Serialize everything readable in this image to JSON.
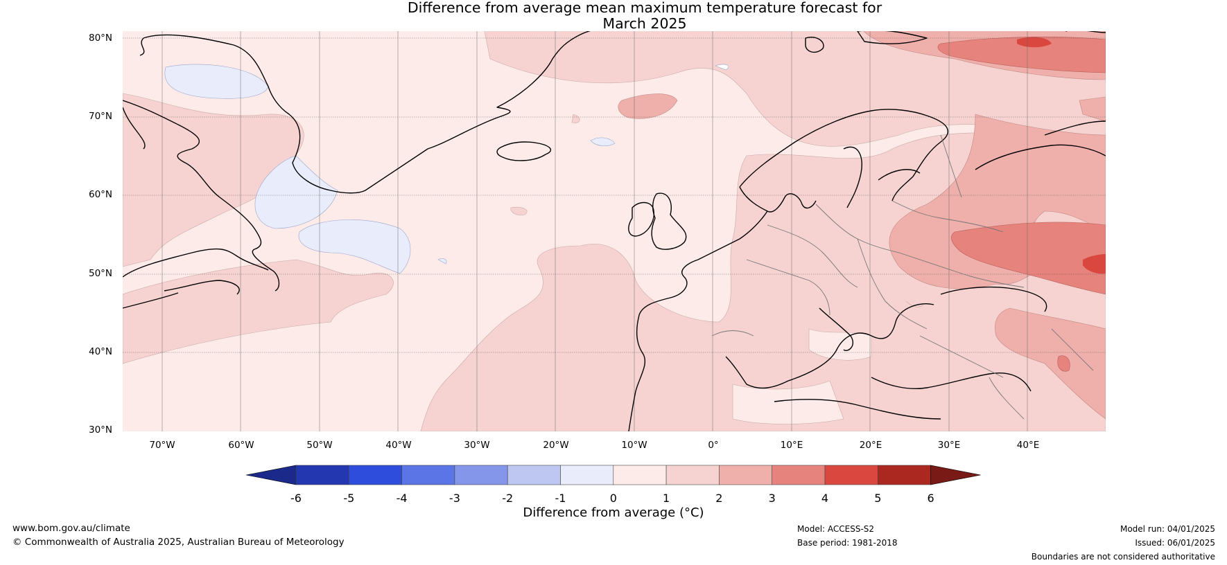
{
  "title_line1": "Difference from average mean maximum temperature forecast for",
  "title_line2": "March 2025",
  "lat_labels": [
    "80°N",
    "70°N",
    "60°N",
    "50°N",
    "40°N",
    "30°N"
  ],
  "lon_labels": [
    "70°W",
    "60°W",
    "50°W",
    "40°W",
    "30°W",
    "20°W",
    "10°W",
    "0°",
    "10°E",
    "20°E",
    "30°E",
    "40°E"
  ],
  "colorbar": {
    "title": "Difference from average (°C)",
    "ticks": [
      "-6",
      "-5",
      "-4",
      "-3",
      "-2",
      "-1",
      "0",
      "1",
      "2",
      "3",
      "4",
      "5",
      "6"
    ],
    "colors": [
      "#2337b0",
      "#2f4ddd",
      "#5b74e6",
      "#8396ea",
      "#bec7f2",
      "#e9edfb",
      "#fdebe9",
      "#f6d3d1",
      "#efafab",
      "#e6837d",
      "#d9473f",
      "#ab2821"
    ],
    "under_color": "#1b2a8a",
    "over_color": "#7a1a16"
  },
  "footer": {
    "url": "www.bom.gov.au/climate",
    "copyright": "© Commonwealth of Australia 2025, Australian Bureau of Meteorology",
    "model": "Model: ACCESS-S2",
    "base_period": "Base period: 1981-2018",
    "model_run": "Model run: 04/01/2025",
    "issued": "Issued: 06/01/2025",
    "disclaimer": "Boundaries are not considered authoritative"
  }
}
